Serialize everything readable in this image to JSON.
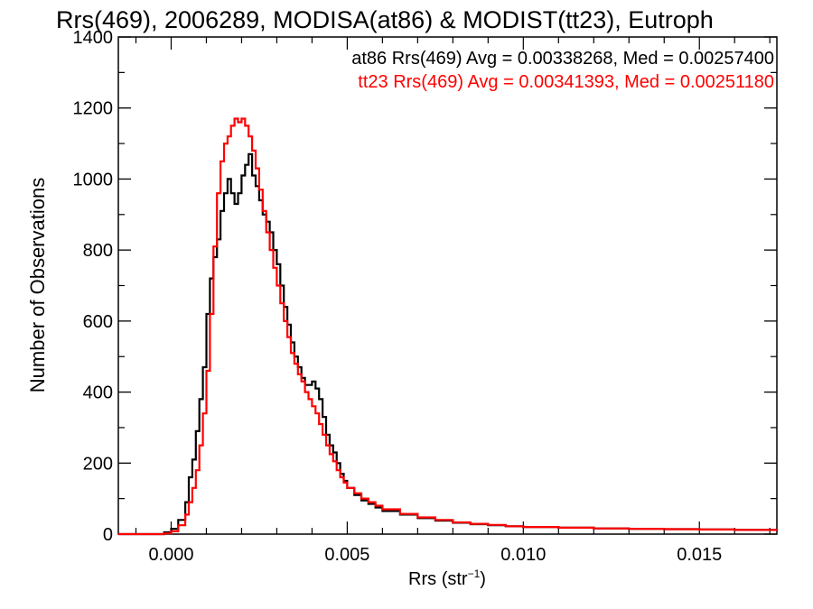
{
  "chart_data": {
    "type": "line",
    "title": "Rrs(469), 2006289, MODISA(at86) & MODIST(tt23), Eutroph",
    "xlabel_main": "Rrs (str",
    "xlabel_sup": "−1",
    "xlabel_tail": ")",
    "ylabel": "Number of Observations",
    "xlim": [
      -0.0015,
      0.0172
    ],
    "ylim": [
      0,
      1400
    ],
    "x_ticks": [
      0.0,
      0.005,
      0.01,
      0.015
    ],
    "x_tick_labels": [
      "0.000",
      "0.005",
      "0.010",
      "0.015"
    ],
    "y_ticks": [
      0,
      200,
      400,
      600,
      800,
      1000,
      1200,
      1400
    ],
    "y_tick_labels": [
      "0",
      "200",
      "400",
      "600",
      "800",
      "1000",
      "1200",
      "1400"
    ],
    "grid": false,
    "legend_position": "top-right",
    "series": [
      {
        "name": "at86 Rrs(469) Avg = 0.00338268, Med = 0.00257400",
        "color": "#000000",
        "x": [
          -0.0015,
          -0.0005,
          -0.0002,
          0.0,
          0.0002,
          0.0004,
          0.0005,
          0.0006,
          0.0007,
          0.0008,
          0.0009,
          0.001,
          0.0011,
          0.0012,
          0.0013,
          0.0014,
          0.0015,
          0.0016,
          0.0017,
          0.0018,
          0.0019,
          0.002,
          0.0021,
          0.0022,
          0.0023,
          0.0024,
          0.0025,
          0.0026,
          0.0027,
          0.0028,
          0.0029,
          0.003,
          0.0031,
          0.0032,
          0.0033,
          0.0034,
          0.0035,
          0.0036,
          0.0037,
          0.0038,
          0.0039,
          0.004,
          0.0041,
          0.0042,
          0.0043,
          0.0044,
          0.0045,
          0.0046,
          0.0047,
          0.0048,
          0.0049,
          0.005,
          0.0052,
          0.0054,
          0.0056,
          0.0058,
          0.006,
          0.0065,
          0.007,
          0.0075,
          0.008,
          0.0085,
          0.009,
          0.0095,
          0.01,
          0.011,
          0.012,
          0.013,
          0.014,
          0.015,
          0.016,
          0.0172
        ],
        "y": [
          0,
          0,
          5,
          15,
          40,
          90,
          160,
          210,
          290,
          380,
          470,
          620,
          720,
          780,
          830,
          910,
          960,
          1000,
          960,
          930,
          960,
          1010,
          1040,
          1070,
          1010,
          980,
          940,
          900,
          880,
          850,
          800,
          760,
          700,
          640,
          590,
          540,
          500,
          470,
          440,
          420,
          420,
          430,
          410,
          380,
          330,
          280,
          250,
          230,
          200,
          170,
          150,
          130,
          110,
          95,
          85,
          75,
          65,
          55,
          45,
          38,
          32,
          28,
          25,
          22,
          20,
          18,
          16,
          15,
          14,
          13,
          12,
          10
        ]
      },
      {
        "name": "tt23 Rrs(469) Avg = 0.00341393, Med = 0.00251180",
        "color": "#ff0000",
        "x": [
          -0.0015,
          -0.0005,
          -0.0002,
          0.0,
          0.0002,
          0.0004,
          0.0005,
          0.0006,
          0.0007,
          0.0008,
          0.0009,
          0.001,
          0.0011,
          0.0012,
          0.0013,
          0.0014,
          0.0015,
          0.0016,
          0.0017,
          0.0018,
          0.0019,
          0.002,
          0.0021,
          0.0022,
          0.0023,
          0.0024,
          0.0025,
          0.0026,
          0.0027,
          0.0028,
          0.0029,
          0.003,
          0.0031,
          0.0032,
          0.0033,
          0.0034,
          0.0035,
          0.0036,
          0.0037,
          0.0038,
          0.0039,
          0.004,
          0.0041,
          0.0042,
          0.0043,
          0.0044,
          0.0045,
          0.0046,
          0.0047,
          0.0048,
          0.0049,
          0.005,
          0.0052,
          0.0054,
          0.0056,
          0.0058,
          0.006,
          0.0065,
          0.007,
          0.0075,
          0.008,
          0.0085,
          0.009,
          0.0095,
          0.01,
          0.011,
          0.012,
          0.013,
          0.014,
          0.015,
          0.016,
          0.0172
        ],
        "y": [
          0,
          0,
          2,
          8,
          25,
          55,
          90,
          130,
          180,
          250,
          340,
          460,
          620,
          810,
          960,
          1050,
          1100,
          1120,
          1150,
          1170,
          1160,
          1170,
          1150,
          1120,
          1080,
          1030,
          970,
          910,
          850,
          800,
          750,
          700,
          650,
          600,
          555,
          510,
          480,
          450,
          430,
          400,
          380,
          360,
          340,
          310,
          280,
          250,
          225,
          205,
          180,
          160,
          145,
          130,
          115,
          100,
          90,
          80,
          70,
          57,
          47,
          40,
          33,
          29,
          26,
          22,
          20,
          18,
          16,
          15,
          14,
          13,
          12,
          10
        ]
      }
    ]
  }
}
